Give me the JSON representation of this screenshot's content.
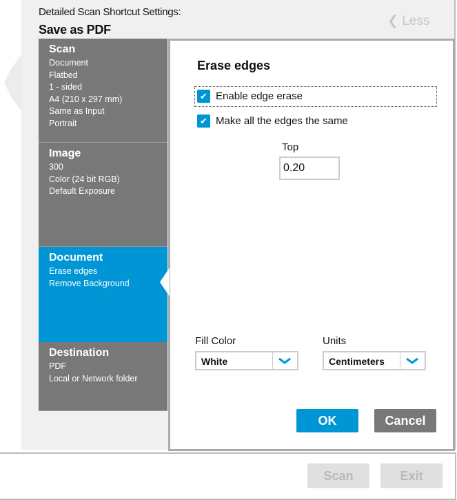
{
  "header": {
    "subtitle": "Detailed Scan Shortcut Settings:",
    "title": "Save as PDF",
    "less_label": "Less"
  },
  "sidebar": [
    {
      "title": "Scan",
      "lines": [
        "Document",
        "Flatbed",
        "1 - sided",
        "A4 (210 x 297 mm)",
        "Same as Input",
        "Portrait"
      ]
    },
    {
      "title": "Image",
      "lines": [
        "300",
        "Color (24 bit RGB)",
        "Default Exposure"
      ]
    },
    {
      "title": "Document",
      "lines": [
        "Erase edges",
        "Remove Background"
      ],
      "active": true
    },
    {
      "title": "Destination",
      "lines": [
        "PDF",
        "Local or Network folder"
      ]
    }
  ],
  "panel": {
    "heading": "Erase edges",
    "enable_edge_erase": {
      "label": "Enable edge erase",
      "checked": true
    },
    "same_edges": {
      "label": "Make all the edges the same",
      "checked": true
    },
    "top": {
      "label": "Top",
      "value": "0.20"
    },
    "fill_color": {
      "label": "Fill Color",
      "value": "White"
    },
    "units": {
      "label": "Units",
      "value": "Centimeters"
    },
    "ok_label": "OK",
    "cancel_label": "Cancel"
  },
  "footer": {
    "scan_label": "Scan",
    "exit_label": "Exit"
  },
  "colors": {
    "accent": "#0096d6",
    "sidebar": "#787878"
  }
}
